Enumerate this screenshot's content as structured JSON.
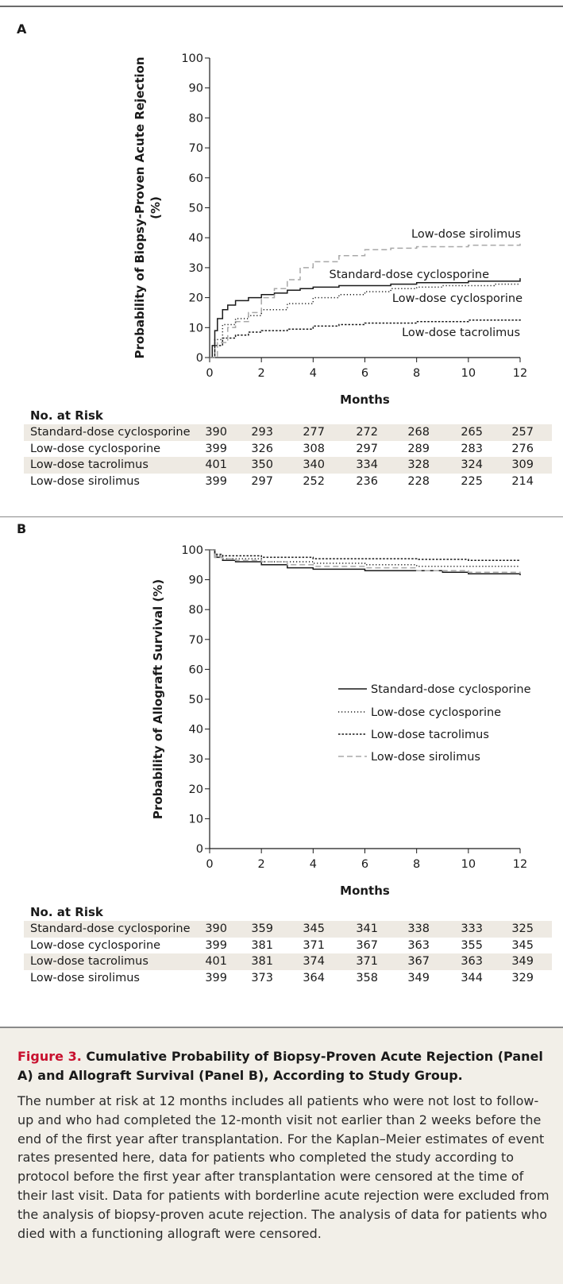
{
  "figure": {
    "caption_label": "Figure 3.",
    "caption_title": " Cumulative Probability of Biopsy-Proven Acute Rejection (Panel A) and Allograft Survival (Panel B), According to Study Group.",
    "caption_text": "The number at risk at 12 months includes all patients who were not lost to follow-up and who had completed the 12-month visit not earlier than 2 weeks before the end of the first year after transplantation. For the Kaplan–Meier estimates of event rates presented here, data for patients who completed the study according to protocol before the first year after transplantation were censored at the time of their last visit. Data for patients with borderline acute rejection were excluded from the analysis of biopsy-proven acute rejection. The analysis of data for patients who died with a functioning allograft were censored."
  },
  "chart_data": [
    {
      "panel": "A",
      "type": "line",
      "ylabel_line1": "Probability of Biopsy-Proven Acute Rejection",
      "ylabel_line2": "(%)",
      "xlabel": "Months",
      "xlim": [
        0,
        12
      ],
      "ylim": [
        0,
        100
      ],
      "x_ticks": [
        0,
        2,
        4,
        6,
        8,
        10,
        12
      ],
      "y_ticks": [
        0,
        10,
        20,
        30,
        40,
        50,
        60,
        70,
        80,
        90,
        100
      ],
      "series": [
        {
          "name": "Standard-dose cyclosporine",
          "style": "solid",
          "color": "#1a1a1a",
          "points": [
            [
              0,
              0
            ],
            [
              0.1,
              4
            ],
            [
              0.2,
              9
            ],
            [
              0.3,
              13
            ],
            [
              0.5,
              16
            ],
            [
              0.7,
              17.5
            ],
            [
              1,
              19
            ],
            [
              1.5,
              20
            ],
            [
              2,
              21
            ],
            [
              2.5,
              21.5
            ],
            [
              3,
              22.5
            ],
            [
              3.5,
              23
            ],
            [
              4,
              23.5
            ],
            [
              5,
              24
            ],
            [
              6,
              24
            ],
            [
              7,
              24.5
            ],
            [
              8,
              25
            ],
            [
              9,
              25
            ],
            [
              10,
              25.5
            ],
            [
              11,
              25.5
            ],
            [
              12,
              26.5
            ]
          ]
        },
        {
          "name": "Low-dose cyclosporine",
          "style": "dotted",
          "color": "#1a1a1a",
          "points": [
            [
              0,
              0
            ],
            [
              0.2,
              6
            ],
            [
              0.5,
              11
            ],
            [
              1,
              13
            ],
            [
              1.5,
              14
            ],
            [
              2,
              16
            ],
            [
              3,
              18
            ],
            [
              4,
              20
            ],
            [
              5,
              21
            ],
            [
              6,
              22
            ],
            [
              7,
              23
            ],
            [
              8,
              23.5
            ],
            [
              9,
              24
            ],
            [
              10,
              24
            ],
            [
              11,
              24.5
            ],
            [
              12,
              24.5
            ]
          ]
        },
        {
          "name": "Low-dose tacrolimus",
          "style": "dashdot",
          "color": "#1a1a1a",
          "points": [
            [
              0,
              0
            ],
            [
              0.2,
              4
            ],
            [
              0.5,
              6.5
            ],
            [
              1,
              7.5
            ],
            [
              1.5,
              8.5
            ],
            [
              2,
              9
            ],
            [
              3,
              9.5
            ],
            [
              4,
              10.5
            ],
            [
              5,
              11
            ],
            [
              6,
              11.5
            ],
            [
              8,
              12
            ],
            [
              10,
              12.5
            ],
            [
              12,
              13
            ]
          ]
        },
        {
          "name": "Low-dose sirolimus",
          "style": "dashed",
          "color": "#a8a8a8",
          "points": [
            [
              0,
              0
            ],
            [
              0.3,
              5
            ],
            [
              0.7,
              10
            ],
            [
              1,
              12
            ],
            [
              1.5,
              15
            ],
            [
              2,
              20
            ],
            [
              2.5,
              23
            ],
            [
              3,
              26
            ],
            [
              3.5,
              30
            ],
            [
              4,
              32
            ],
            [
              5,
              34
            ],
            [
              6,
              36
            ],
            [
              7,
              36.5
            ],
            [
              8,
              37
            ],
            [
              9,
              37
            ],
            [
              10,
              37.5
            ],
            [
              11,
              37.5
            ],
            [
              12,
              38
            ]
          ]
        }
      ],
      "inline_labels": [
        "Low-dose sirolimus",
        "Standard-dose cyclosporine",
        "Low-dose cyclosporine",
        "Low-dose tacrolimus"
      ]
    },
    {
      "panel": "B",
      "type": "line",
      "ylabel_line1": "Probability of Allograft Survival (%)",
      "xlabel": "Months",
      "xlim": [
        0,
        12
      ],
      "ylim": [
        0,
        100
      ],
      "x_ticks": [
        0,
        2,
        4,
        6,
        8,
        10,
        12
      ],
      "y_ticks": [
        0,
        10,
        20,
        30,
        40,
        50,
        60,
        70,
        80,
        90,
        100
      ],
      "legend": "right",
      "series": [
        {
          "name": "Standard-dose cyclosporine",
          "style": "solid",
          "color": "#1a1a1a",
          "points": [
            [
              0,
              100
            ],
            [
              0.2,
              97.5
            ],
            [
              0.5,
              96.5
            ],
            [
              1,
              96
            ],
            [
              2,
              95
            ],
            [
              3,
              94
            ],
            [
              4,
              93.5
            ],
            [
              6,
              93
            ],
            [
              8,
              93
            ],
            [
              9,
              92.5
            ],
            [
              10,
              92
            ],
            [
              11,
              92
            ],
            [
              12,
              91.5
            ]
          ]
        },
        {
          "name": "Low-dose cyclosporine",
          "style": "dotted",
          "color": "#1a1a1a",
          "points": [
            [
              0,
              100
            ],
            [
              0.2,
              98
            ],
            [
              0.5,
              97
            ],
            [
              1,
              97
            ],
            [
              2,
              96
            ],
            [
              4,
              95.5
            ],
            [
              6,
              95
            ],
            [
              8,
              94.5
            ],
            [
              10,
              94.5
            ],
            [
              12,
              94.5
            ]
          ]
        },
        {
          "name": "Low-dose tacrolimus",
          "style": "dashdot",
          "color": "#1a1a1a",
          "points": [
            [
              0,
              100
            ],
            [
              0.2,
              98.5
            ],
            [
              0.5,
              98
            ],
            [
              1,
              98
            ],
            [
              2,
              97.5
            ],
            [
              4,
              97
            ],
            [
              6,
              97
            ],
            [
              8,
              96.8
            ],
            [
              10,
              96.5
            ],
            [
              12,
              96.5
            ]
          ]
        },
        {
          "name": "Low-dose sirolimus",
          "style": "dashed",
          "color": "#a8a8a8",
          "points": [
            [
              0,
              100
            ],
            [
              0.2,
              97.5
            ],
            [
              0.5,
              97
            ],
            [
              1,
              96.5
            ],
            [
              2,
              96
            ],
            [
              3,
              95
            ],
            [
              4,
              94.5
            ],
            [
              6,
              94
            ],
            [
              8,
              93
            ],
            [
              10,
              92.5
            ],
            [
              12,
              92
            ]
          ]
        }
      ]
    }
  ],
  "risk_tables": [
    {
      "panel": "A",
      "title": "No. at Risk",
      "rows": [
        {
          "label": "Standard-dose cyclosporine",
          "values": [
            "390",
            "293",
            "277",
            "272",
            "268",
            "265",
            "257"
          ]
        },
        {
          "label": "Low-dose cyclosporine",
          "values": [
            "399",
            "326",
            "308",
            "297",
            "289",
            "283",
            "276"
          ]
        },
        {
          "label": "Low-dose tacrolimus",
          "values": [
            "401",
            "350",
            "340",
            "334",
            "328",
            "324",
            "309"
          ]
        },
        {
          "label": "Low-dose sirolimus",
          "values": [
            "399",
            "297",
            "252",
            "236",
            "228",
            "225",
            "214"
          ]
        }
      ]
    },
    {
      "panel": "B",
      "title": "No. at Risk",
      "rows": [
        {
          "label": "Standard-dose cyclosporine",
          "values": [
            "390",
            "359",
            "345",
            "341",
            "338",
            "333",
            "325"
          ]
        },
        {
          "label": "Low-dose cyclosporine",
          "values": [
            "399",
            "381",
            "371",
            "367",
            "363",
            "355",
            "345"
          ]
        },
        {
          "label": "Low-dose tacrolimus",
          "values": [
            "401",
            "381",
            "374",
            "371",
            "367",
            "363",
            "349"
          ]
        },
        {
          "label": "Low-dose sirolimus",
          "values": [
            "399",
            "373",
            "364",
            "358",
            "349",
            "344",
            "329"
          ]
        }
      ]
    }
  ]
}
